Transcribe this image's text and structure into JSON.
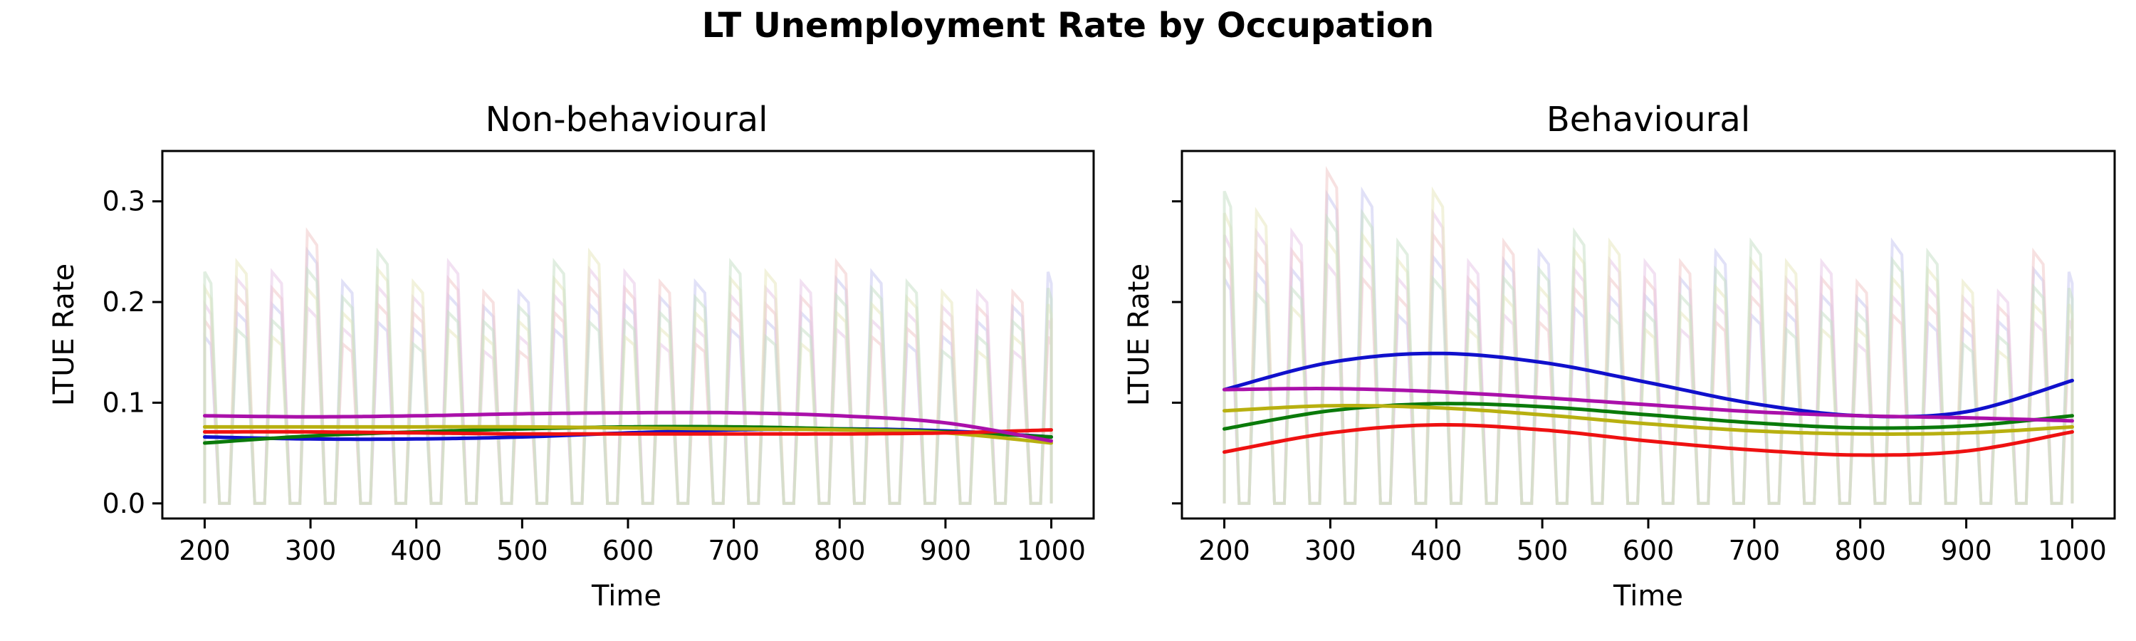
{
  "figure": {
    "suptitle": "LT Unemployment Rate by Occupation"
  },
  "chart_data": [
    {
      "type": "line",
      "title": "Non-behavioural",
      "xlabel": "Time",
      "ylabel": "LTUE Rate",
      "xlim": [
        160,
        1040
      ],
      "ylim": [
        -0.015,
        0.35
      ],
      "xticks": [
        200,
        300,
        400,
        500,
        600,
        700,
        800,
        900,
        1000
      ],
      "yticks": [
        0.0,
        0.1,
        0.2,
        0.3
      ],
      "ytick_labels": [
        "0.0",
        "0.1",
        "0.2",
        "0.3"
      ],
      "grid": false,
      "series": [
        {
          "color": "#1010cc",
          "x": [
            200,
            300,
            400,
            500,
            600,
            700,
            800,
            900,
            1000
          ],
          "y": [
            0.066,
            0.064,
            0.064,
            0.066,
            0.07,
            0.073,
            0.074,
            0.072,
            0.066
          ]
        },
        {
          "color": "#0a7a0a",
          "x": [
            200,
            300,
            400,
            500,
            600,
            700,
            800,
            900,
            1000
          ],
          "y": [
            0.06,
            0.067,
            0.071,
            0.074,
            0.076,
            0.076,
            0.074,
            0.071,
            0.066
          ]
        },
        {
          "color": "#b8b010",
          "x": [
            200,
            300,
            400,
            500,
            600,
            700,
            800,
            900,
            1000
          ],
          "y": [
            0.076,
            0.076,
            0.076,
            0.076,
            0.075,
            0.074,
            0.073,
            0.07,
            0.06
          ]
        },
        {
          "color": "#ee1111",
          "x": [
            200,
            300,
            400,
            500,
            600,
            700,
            800,
            900,
            1000
          ],
          "y": [
            0.071,
            0.071,
            0.07,
            0.069,
            0.069,
            0.069,
            0.069,
            0.07,
            0.073
          ]
        },
        {
          "color": "#aa10aa",
          "x": [
            200,
            300,
            400,
            500,
            600,
            700,
            800,
            900,
            1000
          ],
          "y": [
            0.087,
            0.086,
            0.087,
            0.089,
            0.09,
            0.09,
            0.087,
            0.08,
            0.062
          ]
        }
      ],
      "faint_peaks": [
        [
          0.23,
          0.24,
          0.23,
          0.27,
          0.22,
          0.25,
          0.22,
          0.24,
          0.21,
          0.21,
          0.24,
          0.25,
          0.23,
          0.22,
          0.22,
          0.24,
          0.23,
          0.22,
          0.24,
          0.23,
          0.22,
          0.21,
          0.21,
          0.21,
          0.23
        ]
      ]
    },
    {
      "type": "line",
      "title": "Behavioural",
      "xlabel": "Time",
      "ylabel": "LTUE Rate",
      "xlim": [
        160,
        1040
      ],
      "ylim": [
        -0.015,
        0.35
      ],
      "xticks": [
        200,
        300,
        400,
        500,
        600,
        700,
        800,
        900,
        1000
      ],
      "yticks": [
        0.0,
        0.1,
        0.2,
        0.3
      ],
      "ytick_labels": [
        "",
        "",
        "",
        ""
      ],
      "grid": false,
      "series": [
        {
          "color": "#1010cc",
          "x": [
            200,
            300,
            400,
            500,
            600,
            700,
            800,
            900,
            1000
          ],
          "y": [
            0.113,
            0.14,
            0.149,
            0.14,
            0.12,
            0.099,
            0.087,
            0.091,
            0.122
          ]
        },
        {
          "color": "#0a7a0a",
          "x": [
            200,
            300,
            400,
            500,
            600,
            700,
            800,
            900,
            1000
          ],
          "y": [
            0.074,
            0.092,
            0.099,
            0.096,
            0.088,
            0.08,
            0.075,
            0.077,
            0.087
          ]
        },
        {
          "color": "#b8b010",
          "x": [
            200,
            300,
            400,
            500,
            600,
            700,
            800,
            900,
            1000
          ],
          "y": [
            0.092,
            0.097,
            0.095,
            0.088,
            0.079,
            0.072,
            0.069,
            0.07,
            0.076
          ]
        },
        {
          "color": "#ee1111",
          "x": [
            200,
            300,
            400,
            500,
            600,
            700,
            800,
            900,
            1000
          ],
          "y": [
            0.051,
            0.07,
            0.078,
            0.073,
            0.062,
            0.053,
            0.048,
            0.052,
            0.071
          ]
        },
        {
          "color": "#aa10aa",
          "x": [
            200,
            300,
            400,
            500,
            600,
            700,
            800,
            900,
            1000
          ],
          "y": [
            0.113,
            0.114,
            0.111,
            0.105,
            0.098,
            0.091,
            0.087,
            0.085,
            0.082
          ]
        }
      ],
      "faint_peaks": [
        [
          0.31,
          0.29,
          0.27,
          0.33,
          0.31,
          0.26,
          0.31,
          0.24,
          0.26,
          0.25,
          0.27,
          0.26,
          0.24,
          0.24,
          0.25,
          0.26,
          0.24,
          0.24,
          0.22,
          0.26,
          0.25,
          0.22,
          0.21,
          0.25,
          0.23
        ]
      ]
    }
  ]
}
